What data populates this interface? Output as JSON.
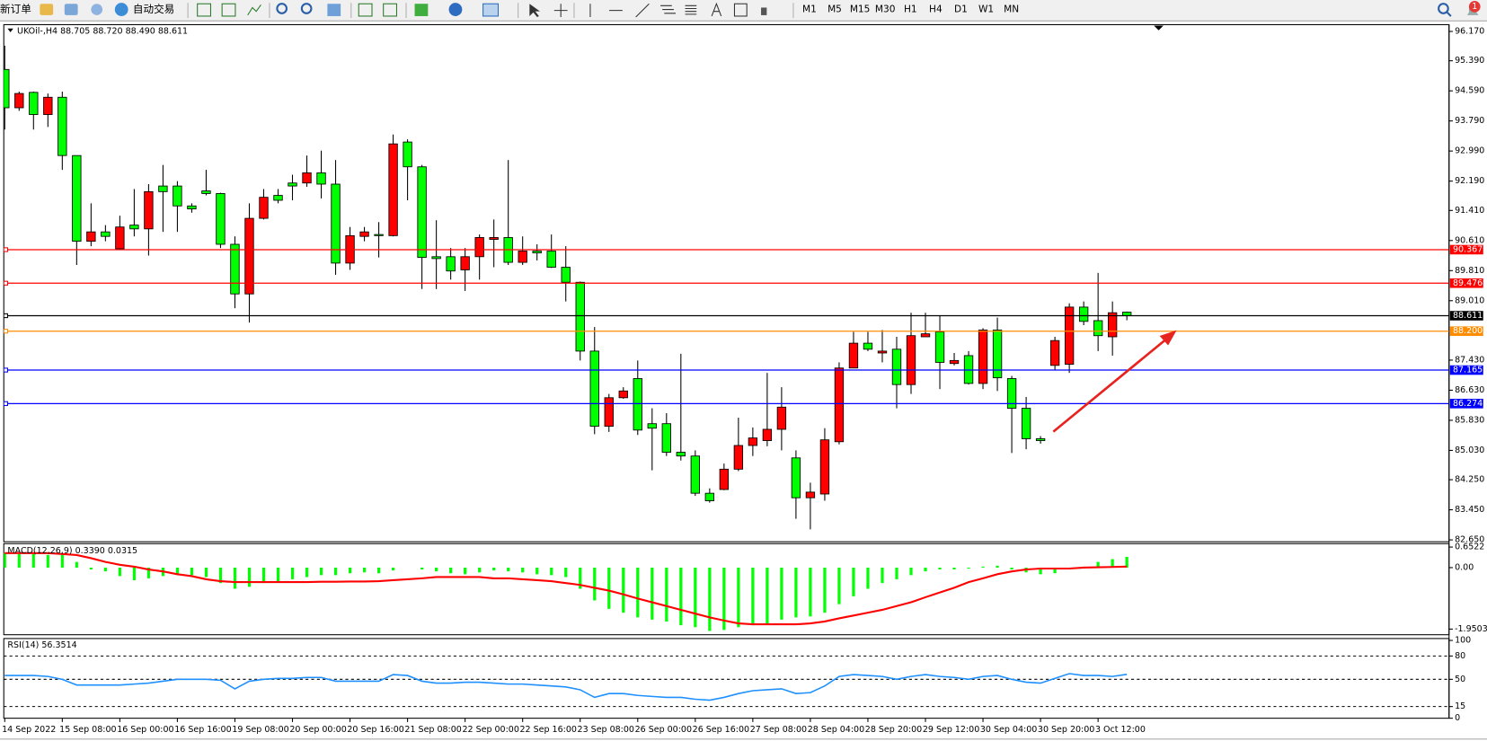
{
  "toolbar": {
    "new_order": "新订单",
    "auto_trading": "自动交易",
    "timeframes": [
      "M1",
      "M5",
      "M15",
      "M30",
      "H1",
      "H4",
      "D1",
      "W1",
      "MN"
    ],
    "notifications": "1"
  },
  "chart_data": [
    {
      "type": "candlestick",
      "title": "UKOil-,H4 88.705 88.720 88.490 88.611",
      "categories": [
        "14 Sep 2022",
        null,
        null,
        null,
        "15 Sep 08:00",
        null,
        null,
        null,
        "16 Sep 00:00",
        null,
        null,
        null,
        "16 Sep 16:00",
        null,
        null,
        null,
        "19 Sep 08:00",
        null,
        null,
        null,
        "20 Sep 00:00",
        null,
        null,
        null,
        "20 Sep 16:00",
        null,
        null,
        null,
        "21 Sep 08:00",
        null,
        null,
        null,
        "22 Sep 00:00",
        null,
        null,
        null,
        "22 Sep 16:00",
        null,
        null,
        null,
        "23 Sep 08:00",
        null,
        null,
        null,
        "26 Sep 00:00",
        null,
        null,
        null,
        "26 Sep 16:00",
        null,
        null,
        null,
        "27 Sep 08:00",
        null,
        null,
        null,
        "28 Sep 04:00",
        null,
        null,
        null,
        "28 Sep 20:00",
        null,
        null,
        null,
        "29 Sep 12:00",
        null,
        null,
        null,
        "30 Sep 04:00",
        null,
        null,
        null,
        "30 Sep 20:00",
        null,
        null,
        null,
        "3 Oct 12:00",
        null,
        null
      ],
      "open": [
        95.16,
        94.14,
        94.55,
        93.96,
        94.42,
        92.87,
        90.59,
        90.84,
        90.39,
        91.02,
        90.92,
        92.06,
        92.06,
        91.53,
        91.93,
        91.86,
        90.51,
        89.19,
        91.2,
        91.81,
        92.14,
        92.14,
        92.41,
        92.11,
        90.01,
        90.72,
        90.77,
        90.74,
        93.23,
        92.57,
        90.18,
        90.18,
        89.83,
        90.18,
        90.64,
        90.69,
        90.03,
        90.33,
        90.33,
        89.9,
        89.5,
        87.67,
        85.67,
        86.43,
        86.94,
        85.74,
        85.74,
        84.98,
        84.88,
        83.89,
        83.99,
        84.53,
        85.16,
        85.29,
        85.59,
        84.83,
        83.77,
        83.87,
        85.26,
        87.22,
        87.88,
        87.62,
        87.72,
        86.78,
        88.05,
        88.18,
        87.34,
        87.55,
        86.81,
        88.23,
        86.94,
        86.15,
        85.34,
        87.29,
        87.32,
        88.84,
        88.48,
        88.05,
        88.705
      ],
      "high": [
        95.79,
        94.57,
        94.57,
        94.52,
        94.57,
        92.87,
        91.6,
        91.02,
        91.27,
        91.98,
        92.11,
        92.62,
        92.19,
        91.6,
        92.49,
        91.88,
        90.72,
        91.6,
        91.98,
        91.98,
        92.36,
        92.87,
        93.0,
        92.75,
        90.97,
        90.97,
        91.1,
        93.43,
        93.3,
        92.62,
        91.15,
        90.41,
        90.41,
        90.77,
        91.17,
        92.75,
        90.72,
        90.51,
        90.77,
        90.46,
        89.52,
        88.31,
        86.53,
        86.71,
        87.42,
        86.15,
        86.02,
        87.6,
        85.03,
        84.02,
        84.68,
        85.9,
        85.64,
        87.09,
        86.71,
        85.03,
        84.17,
        85.62,
        87.37,
        88.18,
        88.18,
        88.23,
        88.05,
        88.69,
        88.69,
        88.61,
        87.62,
        87.67,
        88.28,
        88.56,
        87.01,
        86.45,
        85.41,
        88.05,
        88.94,
        88.99,
        89.75,
        88.99,
        88.72
      ],
      "low": [
        93.56,
        94.06,
        93.56,
        93.63,
        92.49,
        89.96,
        90.46,
        90.59,
        90.36,
        90.72,
        90.21,
        90.84,
        90.84,
        91.35,
        91.81,
        90.41,
        88.81,
        88.43,
        91.17,
        91.6,
        91.68,
        92.04,
        91.73,
        89.7,
        89.83,
        90.59,
        90.16,
        90.72,
        91.68,
        89.32,
        89.32,
        89.57,
        89.27,
        89.57,
        89.9,
        89.96,
        89.96,
        90.08,
        89.88,
        88.99,
        87.42,
        85.46,
        85.52,
        86.4,
        85.44,
        84.5,
        84.88,
        84.76,
        83.82,
        83.64,
        83.97,
        84.48,
        84.88,
        85.14,
        85.03,
        83.21,
        82.93,
        83.69,
        85.19,
        87.22,
        87.67,
        87.37,
        86.15,
        86.53,
        88.05,
        86.66,
        87.29,
        86.78,
        86.66,
        86.61,
        84.96,
        85.06,
        85.21,
        87.16,
        87.09,
        88.36,
        87.67,
        87.55,
        88.49
      ],
      "close": [
        94.14,
        94.52,
        93.96,
        94.42,
        92.87,
        90.59,
        90.84,
        90.72,
        90.97,
        90.92,
        91.91,
        91.91,
        91.53,
        91.45,
        91.86,
        90.51,
        89.19,
        91.2,
        91.76,
        91.68,
        92.06,
        92.41,
        92.11,
        90.01,
        90.74,
        90.84,
        90.74,
        93.18,
        92.57,
        90.16,
        90.13,
        89.8,
        90.18,
        90.69,
        90.69,
        90.03,
        90.33,
        90.28,
        89.9,
        89.5,
        87.67,
        85.67,
        86.43,
        86.61,
        85.57,
        85.62,
        84.98,
        84.88,
        83.89,
        83.69,
        84.53,
        85.16,
        85.36,
        85.59,
        86.18,
        83.77,
        83.92,
        85.31,
        87.22,
        87.88,
        87.72,
        87.67,
        86.78,
        88.08,
        88.13,
        87.37,
        87.42,
        86.81,
        88.23,
        86.96,
        86.15,
        85.34,
        85.29,
        87.95,
        88.84,
        88.46,
        88.08,
        88.69,
        88.611
      ],
      "up_color": "#ff0000",
      "down_color": "#00ff00",
      "ylim": [
        82.6,
        96.35
      ],
      "yticks": [
        {
          "value": 96.17,
          "label": "96.170"
        },
        {
          "value": 95.39,
          "label": "95.390"
        },
        {
          "value": 94.59,
          "label": "94.590"
        },
        {
          "value": 93.79,
          "label": "93.790"
        },
        {
          "value": 92.99,
          "label": "92.990"
        },
        {
          "value": 92.19,
          "label": "92.190"
        },
        {
          "value": 91.41,
          "label": "91.410"
        },
        {
          "value": 90.61,
          "label": "90.610"
        },
        {
          "value": 89.81,
          "label": "89.810"
        },
        {
          "value": 89.01,
          "label": "89.010"
        },
        {
          "value": 87.43,
          "label": "87.430"
        },
        {
          "value": 86.63,
          "label": "86.630"
        },
        {
          "value": 85.83,
          "label": "85.830"
        },
        {
          "value": 85.03,
          "label": "85.030"
        },
        {
          "value": 84.25,
          "label": "84.250"
        },
        {
          "value": 83.45,
          "label": "83.450"
        },
        {
          "value": 82.65,
          "label": "82.650"
        }
      ],
      "levels": [
        {
          "price": 90.367,
          "color": "#ff0000"
        },
        {
          "price": 89.476,
          "color": "#ff0000"
        },
        {
          "price": 88.611,
          "color": "#000000"
        },
        {
          "price": 88.2,
          "label": "88.200",
          "color": "#ff8c00"
        },
        {
          "price": 87.165,
          "color": "#0000ff"
        },
        {
          "price": 86.274,
          "color": "#0000ff"
        }
      ]
    },
    {
      "type": "macd",
      "title": "MACD(12,26,9) 0.3390 0.0315",
      "series": [
        {
          "type": "bar",
          "color": "#00ff00",
          "values": [
            0.46,
            0.43,
            0.43,
            0.4,
            0.4,
            0.18,
            -0.06,
            -0.12,
            -0.27,
            -0.4,
            -0.34,
            -0.27,
            -0.24,
            -0.24,
            -0.3,
            -0.49,
            -0.67,
            -0.61,
            -0.49,
            -0.43,
            -0.37,
            -0.3,
            -0.24,
            -0.24,
            -0.18,
            -0.15,
            -0.18,
            -0.09,
            0.0,
            -0.06,
            -0.12,
            -0.18,
            -0.21,
            -0.15,
            -0.09,
            -0.12,
            -0.15,
            -0.21,
            -0.24,
            -0.3,
            -0.67,
            -1.04,
            -1.31,
            -1.43,
            -1.58,
            -1.65,
            -1.71,
            -1.83,
            -1.89,
            -2.01,
            -1.98,
            -1.89,
            -1.83,
            -1.77,
            -1.65,
            -1.58,
            -1.55,
            -1.43,
            -1.16,
            -0.91,
            -0.67,
            -0.49,
            -0.37,
            -0.24,
            -0.12,
            -0.06,
            -0.06,
            -0.03,
            0.03,
            0.06,
            -0.06,
            -0.15,
            -0.21,
            -0.18,
            -0.06,
            0.03,
            0.18,
            0.27,
            0.339
          ]
        },
        {
          "type": "line",
          "color": "#ff0000",
          "values": [
            0.46,
            0.46,
            0.46,
            0.46,
            0.43,
            0.4,
            0.3,
            0.18,
            0.09,
            0.03,
            -0.06,
            -0.12,
            -0.21,
            -0.27,
            -0.37,
            -0.43,
            -0.46,
            -0.46,
            -0.46,
            -0.46,
            -0.46,
            -0.46,
            -0.45,
            -0.45,
            -0.44,
            -0.44,
            -0.43,
            -0.4,
            -0.37,
            -0.34,
            -0.3,
            -0.3,
            -0.3,
            -0.3,
            -0.34,
            -0.34,
            -0.37,
            -0.4,
            -0.43,
            -0.49,
            -0.55,
            -0.64,
            -0.73,
            -0.85,
            -0.98,
            -1.1,
            -1.22,
            -1.34,
            -1.46,
            -1.58,
            -1.68,
            -1.77,
            -1.8,
            -1.8,
            -1.8,
            -1.8,
            -1.77,
            -1.71,
            -1.61,
            -1.52,
            -1.43,
            -1.34,
            -1.22,
            -1.1,
            -0.94,
            -0.79,
            -0.64,
            -0.46,
            -0.34,
            -0.21,
            -0.12,
            -0.06,
            -0.03,
            -0.03,
            -0.03,
            0.0,
            0.01,
            0.02,
            0.0315
          ]
        }
      ],
      "ylim": [
        -2.13,
        0.73
      ],
      "yticks": [
        0.6522,
        {
          "value": 0,
          "label": "0.00"
        },
        -1.9503
      ]
    },
    {
      "type": "line",
      "title": "RSI(14) 56.3514",
      "color": "#1e90ff",
      "values": [
        54.9,
        54.9,
        54.9,
        53.7,
        50,
        42.7,
        42.7,
        42.7,
        42.7,
        43.9,
        45.1,
        47.6,
        50,
        50,
        50,
        48.8,
        37.8,
        47.6,
        50,
        51.2,
        51.2,
        52.4,
        52.4,
        47.6,
        47.6,
        47.6,
        47.6,
        56.1,
        54.9,
        47.6,
        45.1,
        45.1,
        46.3,
        46.3,
        45.1,
        43.9,
        43.9,
        42.7,
        41.5,
        40.2,
        36.6,
        26.8,
        31.7,
        31.7,
        29.3,
        28,
        26.8,
        26.8,
        24.4,
        23.2,
        26.8,
        31.7,
        35.4,
        36.6,
        37.8,
        31.7,
        32.9,
        41.5,
        53.7,
        56.1,
        54.9,
        53.7,
        50,
        53.7,
        56.1,
        53.7,
        52.4,
        50,
        53.7,
        54.9,
        50,
        46.3,
        45.1,
        51.2,
        57.3,
        54.9,
        54.9,
        53.7,
        56.35
      ],
      "ylim": [
        0,
        100
      ],
      "yticks": [
        100,
        80,
        50,
        15,
        0
      ]
    }
  ]
}
